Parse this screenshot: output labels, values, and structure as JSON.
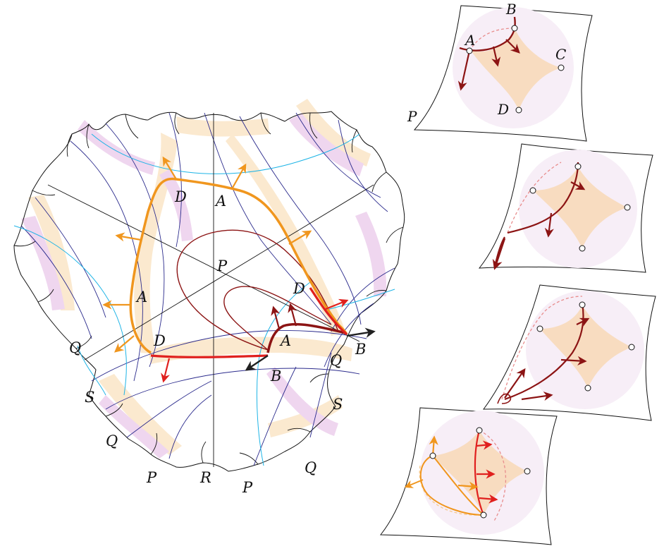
{
  "main_diagram": {
    "labels": {
      "D_upper": "D",
      "A_upper": "A",
      "P_center": "P",
      "A_left": "A",
      "D_right": "D",
      "A_right": "A",
      "Q_left": "Q",
      "D_lower": "D",
      "B_center": "B",
      "Q_right": "Q",
      "B_right": "B",
      "S_left": "S",
      "S_right": "S",
      "Q_lowerleft": "Q",
      "Q_lowerright": "Q",
      "P_lowerleft": "P",
      "R_bottom": "R",
      "P_lowerright": "P"
    }
  },
  "panels": [
    {
      "labels": {
        "B": "B",
        "A": "A",
        "C": "C",
        "D": "D",
        "P": "P"
      }
    },
    {},
    {},
    {}
  ],
  "colors": {
    "orange": "#f0961e",
    "dark_red": "#8c1414",
    "red": "#e0201e",
    "black_arrow": "#202020",
    "cyan": "#1eb4e6",
    "navy": "#2a2a8c",
    "peach_fill": "#fbe9cf",
    "lavender_fill": "#efd6ef",
    "light_disk": "#f7eef7"
  }
}
